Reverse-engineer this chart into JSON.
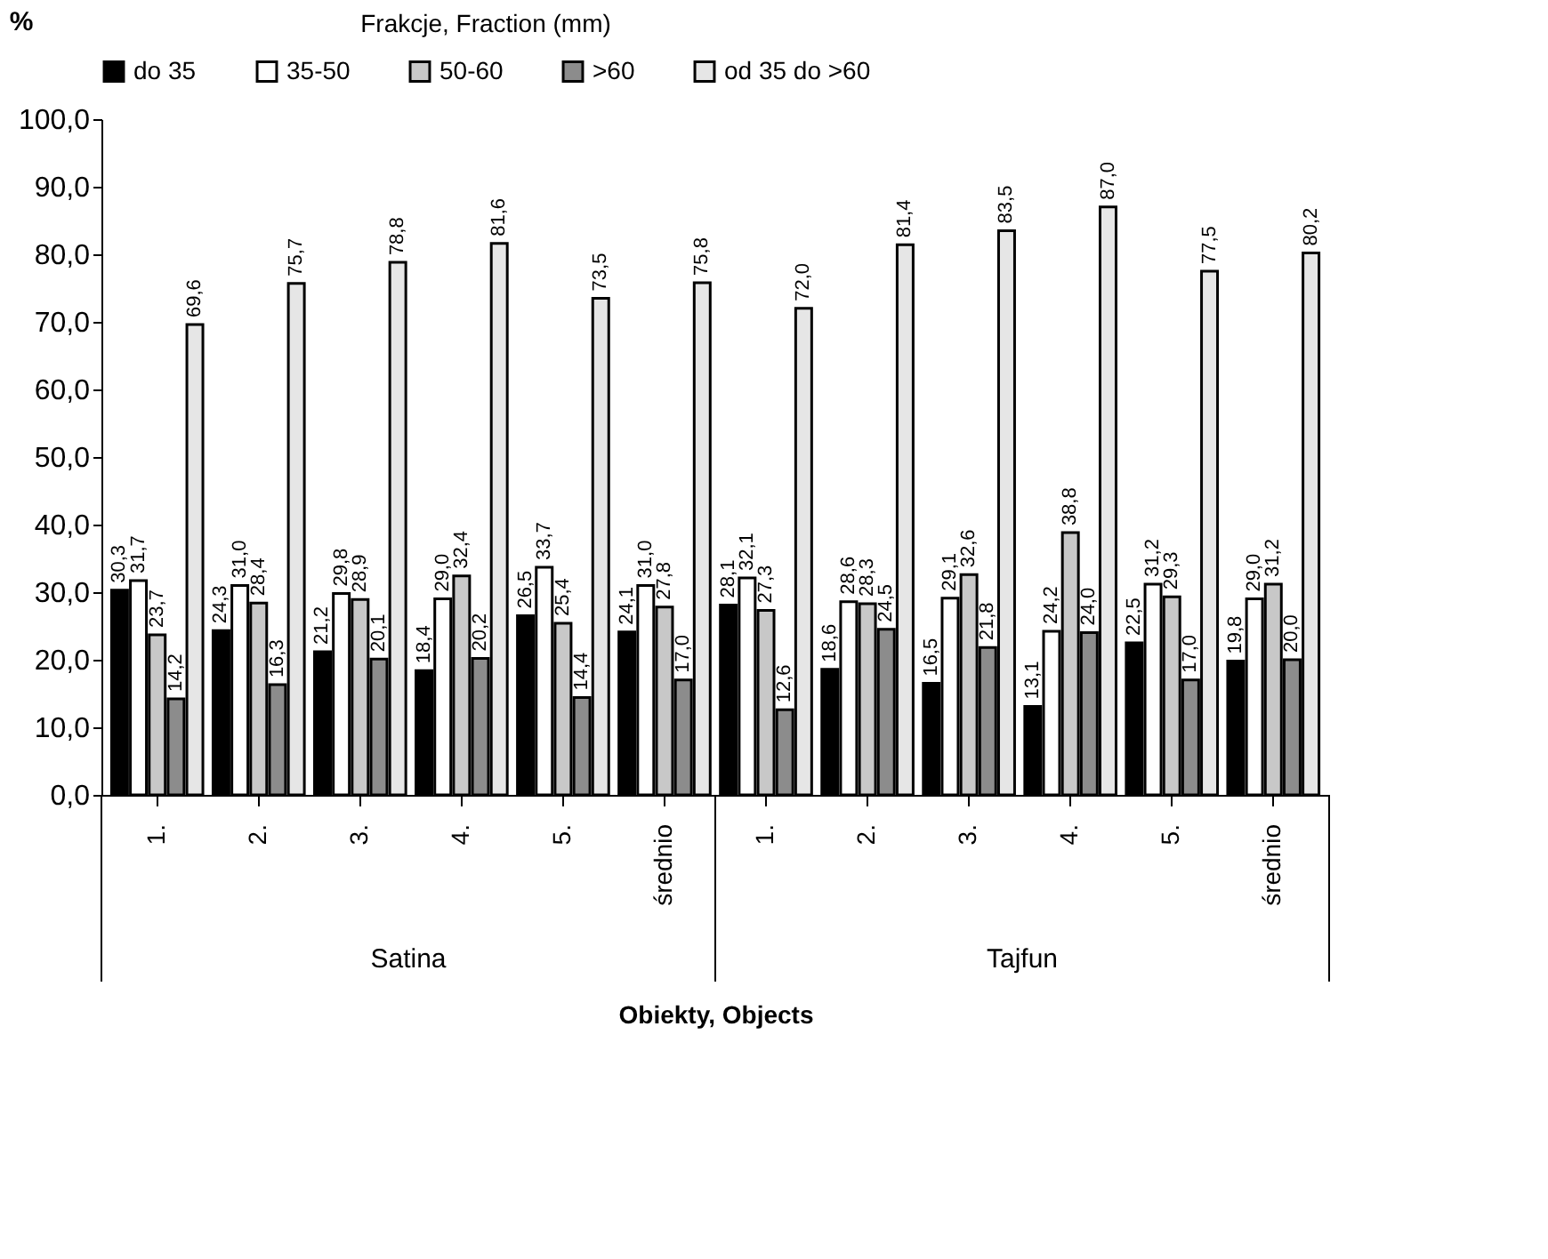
{
  "chart_data": {
    "type": "bar",
    "legend_title": "Frakcje, Fraction (mm)",
    "ylabel": "%",
    "xlabel": "Obiekty, Objects",
    "categories": [
      "1.",
      "2.",
      "3.",
      "4.",
      "5.",
      "średnio",
      "1.",
      "2.",
      "3.",
      "4.",
      "5.",
      "średnio"
    ],
    "annotations": [
      "Satina",
      "Tajfun"
    ],
    "series": [
      {
        "name": "do 35",
        "color": "#000000",
        "values": [
          30.3,
          24.3,
          21.2,
          18.4,
          26.5,
          24.1,
          28.1,
          18.6,
          16.5,
          13.1,
          22.5,
          19.8
        ],
        "value_labels": [
          "30,3",
          "24,3",
          "21,2",
          "18,4",
          "26,5",
          "24,1",
          "28,1",
          "18,6",
          "16,5",
          "13,1",
          "22,5",
          "19,8"
        ]
      },
      {
        "name": "35-50",
        "color": "#ffffff",
        "values": [
          31.7,
          31.0,
          29.8,
          29.0,
          33.7,
          31.0,
          32.1,
          28.6,
          29.1,
          24.2,
          31.2,
          29.0
        ],
        "value_labels": [
          "31,7",
          "31,0",
          "29,8",
          "29,0",
          "33,7",
          "31,0",
          "32,1",
          "28,6",
          "29,1",
          "24,2",
          "31,2",
          "29,0"
        ]
      },
      {
        "name": "50-60",
        "color": "#c8c8c8",
        "values": [
          23.7,
          28.4,
          28.9,
          32.4,
          25.4,
          27.8,
          27.3,
          28.3,
          32.6,
          38.8,
          29.3,
          31.2
        ],
        "value_labels": [
          "23,7",
          "28,4",
          "28,9",
          "32,4",
          "25,4",
          "27,8",
          "27,3",
          "28,3",
          "32,6",
          "38,8",
          "29,3",
          "31,2"
        ]
      },
      {
        "name": ">60",
        "color": "#8c8c8c",
        "values": [
          14.2,
          16.3,
          20.1,
          20.2,
          14.4,
          17.0,
          12.6,
          24.5,
          21.8,
          24.0,
          17.0,
          20.0
        ],
        "value_labels": [
          "14,2",
          "16,3",
          "20,1",
          "20,2",
          "14,4",
          "17,0",
          "12,6",
          "24,5",
          "21,8",
          "24,0",
          "17,0",
          "20,0"
        ]
      },
      {
        "name": "od 35 do >60",
        "color": "#e6e6e6",
        "values": [
          69.6,
          75.7,
          78.8,
          81.6,
          73.5,
          75.8,
          72.0,
          81.4,
          83.5,
          87.0,
          77.5,
          80.2
        ],
        "value_labels": [
          "69,6",
          "75,7",
          "78,8",
          "81,6",
          "73,5",
          "75,8",
          "72,0",
          "81,4",
          "83,5",
          "87,0",
          "77,5",
          "80,2"
        ]
      }
    ],
    "ylim": [
      0,
      100
    ],
    "yticks": [
      {
        "value": 0,
        "label": "0,0"
      },
      {
        "value": 10,
        "label": "10,0"
      },
      {
        "value": 20,
        "label": "20,0"
      },
      {
        "value": 30,
        "label": "30,0"
      },
      {
        "value": 40,
        "label": "40,0"
      },
      {
        "value": 50,
        "label": "50,0"
      },
      {
        "value": 60,
        "label": "60,0"
      },
      {
        "value": 70,
        "label": "70,0"
      },
      {
        "value": 80,
        "label": "80,0"
      },
      {
        "value": 90,
        "label": "90,0"
      },
      {
        "value": 100,
        "label": "100,0"
      }
    ],
    "grid": false,
    "legend": "top"
  }
}
